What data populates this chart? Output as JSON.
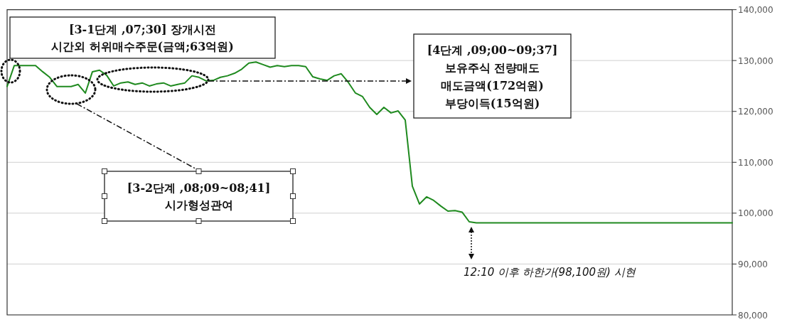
{
  "chart_data": {
    "type": "line",
    "categories": [
      null,
      null,
      null,
      null,
      null,
      null,
      null,
      null,
      null,
      null,
      null,
      null,
      null,
      null,
      null,
      null,
      null,
      null,
      null,
      null,
      null,
      null,
      null,
      null,
      null,
      null,
      null,
      null,
      null,
      null,
      null,
      null,
      null,
      null,
      null,
      null,
      null,
      null,
      null,
      null,
      null,
      null,
      null,
      null,
      null,
      null,
      null,
      null,
      null,
      null,
      null,
      null,
      null,
      null,
      null,
      null,
      null,
      null,
      null,
      null,
      null,
      null,
      null,
      null,
      null,
      null,
      null,
      null,
      null,
      null,
      null,
      null,
      null,
      null,
      null,
      null,
      null,
      null,
      null,
      null,
      null,
      null,
      null,
      null,
      null,
      null,
      null,
      null,
      null,
      null,
      null,
      null,
      null,
      null,
      null,
      null,
      null,
      null,
      null,
      null,
      null,
      null,
      null
    ],
    "values": [
      124900,
      129000,
      129000,
      129000,
      129000,
      127800,
      126700,
      124900,
      124900,
      124900,
      125300,
      123600,
      127800,
      128100,
      127100,
      125000,
      125600,
      125800,
      125300,
      125600,
      125000,
      125400,
      125600,
      125000,
      125300,
      125600,
      127000,
      126700,
      126000,
      126100,
      126700,
      127000,
      127500,
      128300,
      129500,
      129700,
      129200,
      128700,
      129000,
      128800,
      129000,
      129000,
      128800,
      126800,
      126400,
      126100,
      127000,
      127400,
      125700,
      123600,
      122900,
      120800,
      119400,
      120800,
      119700,
      120100,
      118300,
      105300,
      101800,
      103200,
      102500,
      101400,
      100400,
      100500,
      100200,
      98300,
      98100,
      98100,
      98100,
      98100,
      98100,
      98100,
      98100,
      98100,
      98100,
      98100,
      98100,
      98100,
      98100,
      98100,
      98100,
      98100,
      98100,
      98100,
      98100,
      98100,
      98100,
      98100,
      98100,
      98100,
      98100,
      98100,
      98100,
      98100,
      98100,
      98100,
      98100,
      98100,
      98100,
      98100,
      98100,
      98100,
      98100
    ],
    "color": "#1f8a1f",
    "ylim": [
      80000,
      140000
    ],
    "yticks": [
      {
        "value": 80000,
        "label": "80,000"
      },
      {
        "value": 90000,
        "label": "90,000"
      },
      {
        "value": 100000,
        "label": "100,000"
      },
      {
        "value": 110000,
        "label": "110,000"
      },
      {
        "value": 120000,
        "label": "120,000"
      },
      {
        "value": 130000,
        "label": "130,000"
      },
      {
        "value": 140000,
        "label": "140,000"
      }
    ],
    "grid": "y",
    "annotations": [
      "[3-1단계 ,07;30]  장개시전\n시간외  허위매수주문(금액;63억원)",
      "[4단계 ,09;00~09;37]\n보유주식  전량매도\n매도금액(172억원)\n부당이득(15억원)",
      "[3-2단계 ,08;09~08;41]\n시가형성관여",
      "12:10 이후 하한가(98,100원) 시현"
    ]
  }
}
